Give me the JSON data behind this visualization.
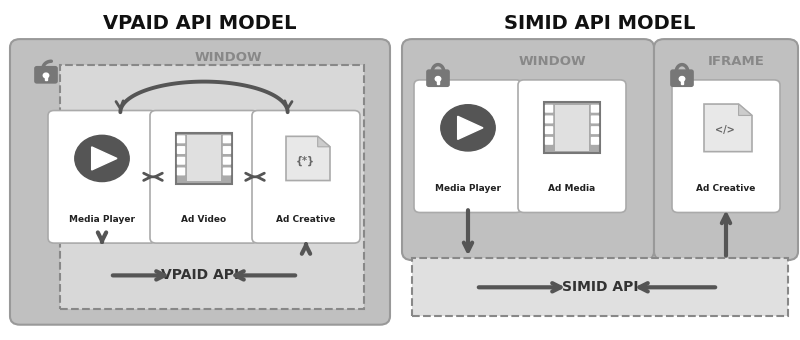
{
  "bg_color": "#ffffff",
  "outer_panel_bg": "#c0c0c0",
  "outer_panel_edge": "#999999",
  "dashed_box_bg": "#e0e0e0",
  "dashed_box_edge": "#888888",
  "api_bar_bg": "#e0e0e0",
  "white_box_bg": "#ffffff",
  "white_box_edge": "#aaaaaa",
  "arrow_color": "#555555",
  "lock_color": "#777777",
  "window_label_color": "#888888",
  "title_color": "#111111",
  "box_label_color": "#222222",
  "api_label_color": "#333333",
  "title_left": "VPAID API MODEL",
  "title_right": "SIMID API MODEL",
  "window_label": "WINDOW",
  "iframe_label": "IFRAME",
  "vpaid_label": "VPAID API",
  "simid_label": "SIMID API",
  "vpaid_boxes": [
    "Media Player",
    "Ad Video",
    "Ad Creative"
  ],
  "simid_window_boxes": [
    "Media Player",
    "Ad Media"
  ],
  "simid_iframe_boxes": [
    "Ad Creative"
  ]
}
